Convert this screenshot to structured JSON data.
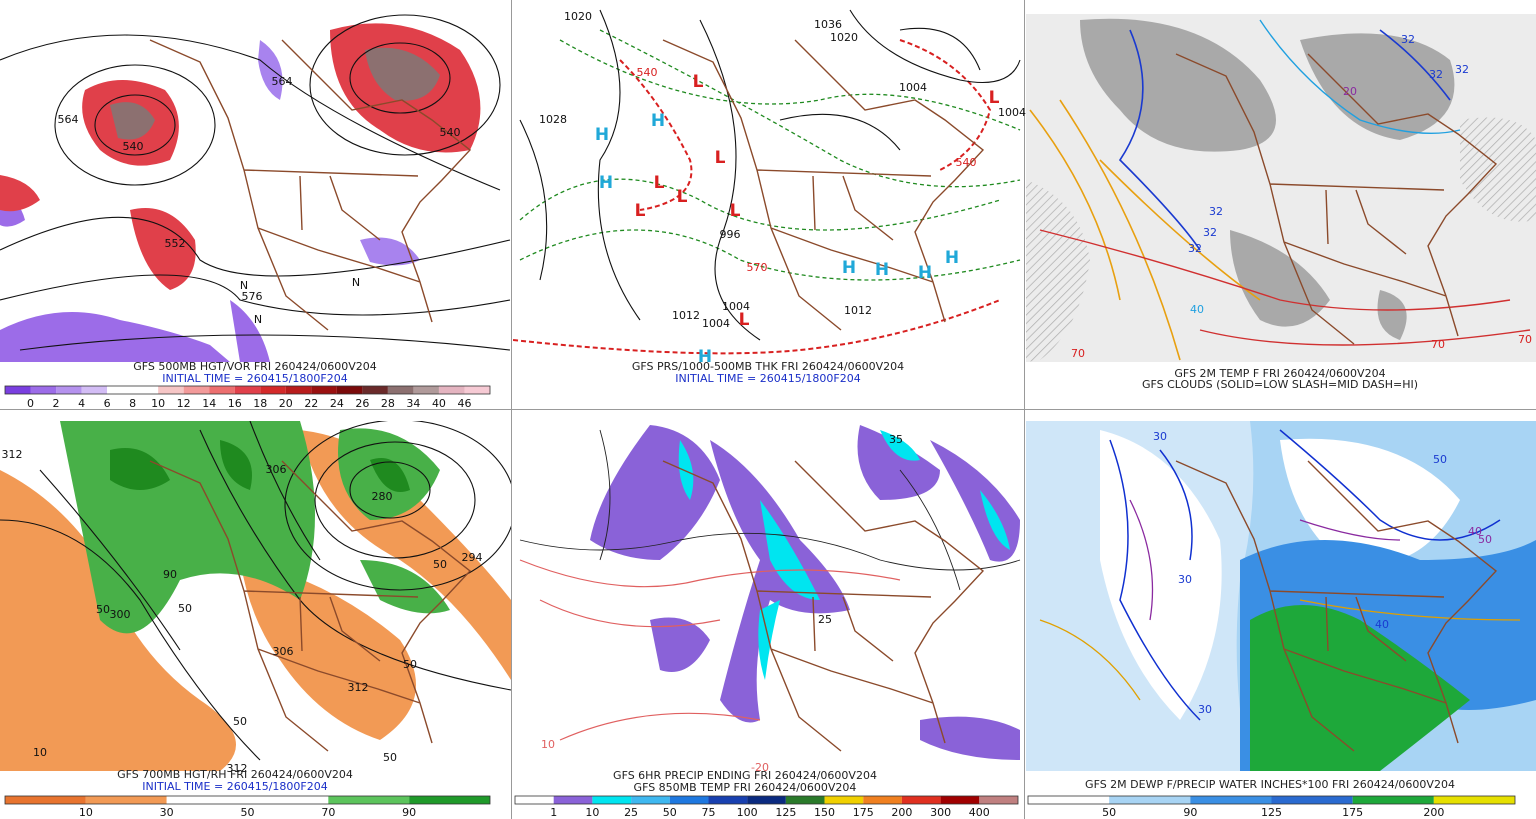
{
  "panels": [
    {
      "captions": [
        "GFS 500MB HGT/VOR FRI 260424/0600V204",
        "INITIAL TIME = 260415/1800F204"
      ],
      "map_labels": [
        "564",
        "540",
        "564",
        "540",
        "576",
        "N",
        "N",
        "N",
        "552"
      ],
      "colorbar": {
        "labels": [
          "0",
          "2",
          "4",
          "6",
          "8",
          "10",
          "12",
          "14",
          "16",
          "18",
          "20",
          "22",
          "24",
          "26",
          "28",
          "34",
          "40",
          "46"
        ],
        "colors": [
          "#7a3fe0",
          "#9c6ce8",
          "#b592ee",
          "#d3bdf5",
          "#ffffff",
          "#ffffff",
          "#f6c6c6",
          "#f29a9a",
          "#ec6f6f",
          "#e0404a",
          "#d42a2a",
          "#b81c1c",
          "#9a1010",
          "#7a0a0a",
          "#6a2a2a",
          "#8c7070",
          "#b09a9a",
          "#e4b4c0",
          "#f6cad4"
        ]
      }
    },
    {
      "captions": [
        "GFS PRS/1000-500MB THK FRI 260424/0600V204",
        "INITIAL TIME = 260415/1800F204"
      ],
      "map_labels": [
        "1020",
        "1036",
        "1028",
        "1004",
        "1004",
        "996",
        "1004",
        "1012",
        "1004",
        "1012",
        "1020",
        "540",
        "570",
        "540",
        "H",
        "H",
        "H",
        "H",
        "H",
        "H",
        "H",
        "H",
        "L",
        "L",
        "L",
        "L",
        "L",
        "L",
        "L",
        "L"
      ]
    },
    {
      "captions": [
        "GFS 2M TEMP F FRI 260424/0600V204",
        "GFS CLOUDS (SOLID=LOW SLASH=MID DASH=HI)"
      ],
      "map_labels": [
        "32",
        "32",
        "32",
        "32",
        "32",
        "32",
        "40",
        "70",
        "70",
        "70",
        "20"
      ]
    },
    {
      "captions": [
        "GFS 700MB HGT/RH FRI 260424/0600V204",
        "INITIAL TIME = 260415/1800F204"
      ],
      "map_labels": [
        "312",
        "306",
        "300",
        "50",
        "50",
        "306",
        "312",
        "50",
        "50",
        "10",
        "312",
        "50",
        "280",
        "294",
        "50",
        "90"
      ],
      "colorbar": {
        "labels": [
          "10",
          "30",
          "50",
          "70",
          "90"
        ],
        "colors": [
          "#e8742f",
          "#f29a55",
          "#ffffff",
          "#ffffff",
          "#5cc45c",
          "#1f9a2a"
        ]
      }
    },
    {
      "captions": [
        "GFS 6HR PRECIP ENDING FRI 260424/0600V204",
        "GFS 850MB TEMP FRI 260424/0600V204"
      ],
      "map_labels": [
        "35",
        "25",
        "10",
        "-20"
      ],
      "colorbar": {
        "labels": [
          "1",
          "10",
          "25",
          "50",
          "75",
          "100",
          "125",
          "150",
          "175",
          "200",
          "300",
          "400"
        ],
        "colors": [
          "#ffffff",
          "#8a62d8",
          "#00e5f0",
          "#3fb8f0",
          "#1e78e0",
          "#1840b0",
          "#0a2a80",
          "#2a7a2a",
          "#f0d000",
          "#f08020",
          "#e03020",
          "#a00000",
          "#c08080"
        ]
      }
    },
    {
      "captions": [
        "GFS 2M DEWP F/PRECIP WATER INCHES*100 FRI 260424/0600V204"
      ],
      "map_labels": [
        "30",
        "50",
        "50",
        "30",
        "40",
        "30",
        "40"
      ],
      "colorbar": {
        "labels": [
          "50",
          "90",
          "125",
          "175",
          "200"
        ],
        "colors": [
          "#ffffff",
          "#a8d4f4",
          "#3a8fe4",
          "#2a6ad0",
          "#1ea83a",
          "#e6e000"
        ]
      }
    }
  ]
}
